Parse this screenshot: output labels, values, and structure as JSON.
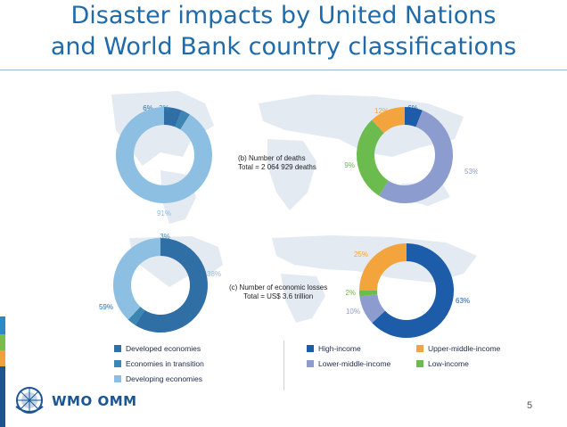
{
  "header": {
    "title_line1": "Disaster impacts by United Nations",
    "title_line2": "and World Bank country classifications"
  },
  "colors": {
    "developed": "#2f6fa6",
    "transition": "#3c86b4",
    "developing": "#8cbfe2",
    "high_income": "#1c5ca8",
    "upper_middle": "#f3a43c",
    "lower_middle": "#8d9ccf",
    "low_income": "#6bbb4f",
    "map": "#e3eaf2",
    "title": "#1f6aa8"
  },
  "deaths_panel": {
    "label_line1": "(b) Number of deaths",
    "label_line2": "Total = 2 064 929 deaths"
  },
  "losses_panel": {
    "label_line1": "(c) Number of economic losses",
    "label_line2": "Total = US$ 3.6 trillion"
  },
  "chart_data": [
    {
      "type": "pie",
      "series": [
        {
          "name": "Developed economies",
          "value": 6,
          "label": "6%"
        },
        {
          "name": "Economies in transition",
          "value": 3,
          "label": "3%"
        },
        {
          "name": "Developing economies",
          "value": 91,
          "label": "91%"
        }
      ]
    },
    {
      "type": "pie",
      "series": [
        {
          "name": "High-income",
          "value": 6,
          "label": "6%"
        },
        {
          "name": "Lower-middle-income",
          "value": 53,
          "label": "53%"
        },
        {
          "name": "Low-income",
          "value": 29,
          "label": "29%"
        },
        {
          "name": "Upper-middle-income",
          "value": 12,
          "label": "12%"
        }
      ]
    },
    {
      "type": "pie",
      "series": [
        {
          "name": "Developed economies",
          "value": 59,
          "label": "59%"
        },
        {
          "name": "Economies in transition",
          "value": 3,
          "label": "3%"
        },
        {
          "name": "Developing economies",
          "value": 38,
          "label": "38%"
        }
      ]
    },
    {
      "type": "pie",
      "series": [
        {
          "name": "High-income",
          "value": 63,
          "label": "63%"
        },
        {
          "name": "Lower-middle-income",
          "value": 10,
          "label": "10%"
        },
        {
          "name": "Low-income",
          "value": 2,
          "label": "2%"
        },
        {
          "name": "Upper-middle-income",
          "value": 25,
          "label": "25%"
        }
      ]
    }
  ],
  "legend_un": [
    {
      "label": "Developed economies",
      "color": "#2f6fa6"
    },
    {
      "label": "Economies in transition",
      "color": "#3c86b4"
    },
    {
      "label": "Developing economies",
      "color": "#8cbfe2"
    }
  ],
  "legend_wb": [
    {
      "label": "High-income",
      "color": "#1c5ca8"
    },
    {
      "label": "Upper-middle-income",
      "color": "#f3a43c"
    },
    {
      "label": "Lower-middle-income",
      "color": "#8d9ccf"
    },
    {
      "label": "Low-income",
      "color": "#6bbb4f"
    }
  ],
  "logo": {
    "text": "WMO OMM",
    "icon": "wmo-emblem-icon"
  },
  "footer": {
    "page_number": "5"
  }
}
